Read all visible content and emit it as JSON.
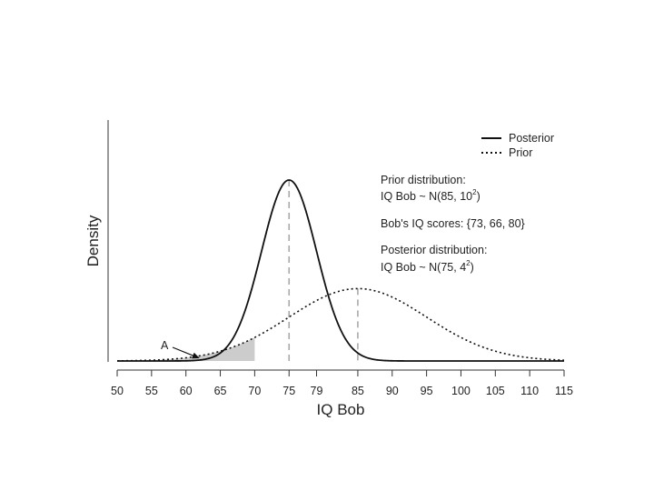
{
  "chart_data": {
    "type": "line",
    "title": "",
    "xlabel": "IQ Bob",
    "ylabel": "Density",
    "xlim": [
      50,
      115
    ],
    "x_ticks": [
      50,
      55,
      60,
      65,
      70,
      75,
      79,
      85,
      90,
      95,
      100,
      105,
      110,
      115
    ],
    "series": [
      {
        "name": "Posterior",
        "style": "solid",
        "distribution": "normal",
        "mean": 75,
        "sd": 4
      },
      {
        "name": "Prior",
        "style": "dotted",
        "distribution": "normal",
        "mean": 85,
        "sd": 10
      }
    ],
    "mean_markers": [
      75,
      85
    ],
    "shaded_region": {
      "series": "Prior",
      "x_from": 50,
      "x_to": 70,
      "color": "#cccccc"
    },
    "arrow_annotation": {
      "label": "A",
      "points_to_x": 62
    },
    "legend": {
      "position": "top-right",
      "entries": [
        "Posterior",
        "Prior"
      ]
    },
    "annotations": {
      "prior_heading": "Prior distribution:",
      "prior_formula_text": "IQ Bob ~ N(85, 10",
      "prior_formula_sup": "2",
      "prior_formula_close": ")",
      "scores": "Bob's IQ scores: {73, 66, 80}",
      "posterior_heading": "Posterior distribution:",
      "posterior_formula_text": "IQ Bob ~ N(75, 4",
      "posterior_formula_sup": "2",
      "posterior_formula_close": ")"
    },
    "colors": {
      "line": "#111111",
      "mean_line": "#aaaaaa",
      "shade": "#cccccc"
    }
  }
}
